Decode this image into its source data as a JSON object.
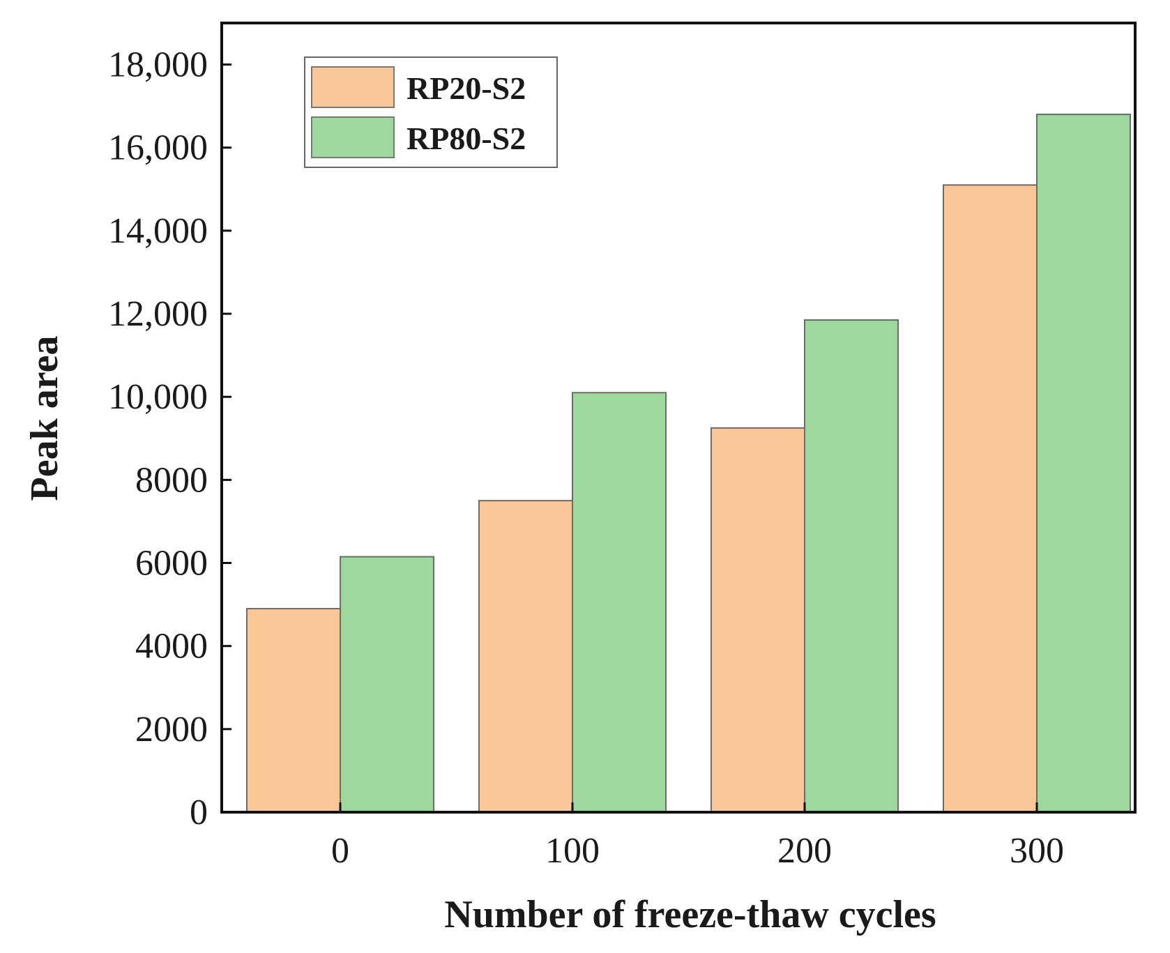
{
  "chart_data": {
    "type": "bar",
    "title": "",
    "xlabel": "Number of freeze-thaw cycles",
    "ylabel": "Peak area",
    "categories": [
      "0",
      "100",
      "200",
      "300"
    ],
    "series": [
      {
        "name": "RP20-S2",
        "color": "#fbc796",
        "values": [
          4900,
          7500,
          9250,
          15100
        ]
      },
      {
        "name": "RP80-S2",
        "color": "#9dd89c",
        "values": [
          6150,
          10100,
          11850,
          16800
        ]
      }
    ],
    "ylim": [
      0,
      19000
    ],
    "yticks": [
      0,
      2000,
      4000,
      6000,
      8000,
      10000,
      12000,
      14000,
      16000,
      18000
    ],
    "ytick_labels": [
      "0",
      "2000",
      "4000",
      "6000",
      "8000",
      "10,000",
      "12,000",
      "14,000",
      "16,000",
      "18,000"
    ],
    "legend_position": "top-left",
    "grid": false
  }
}
